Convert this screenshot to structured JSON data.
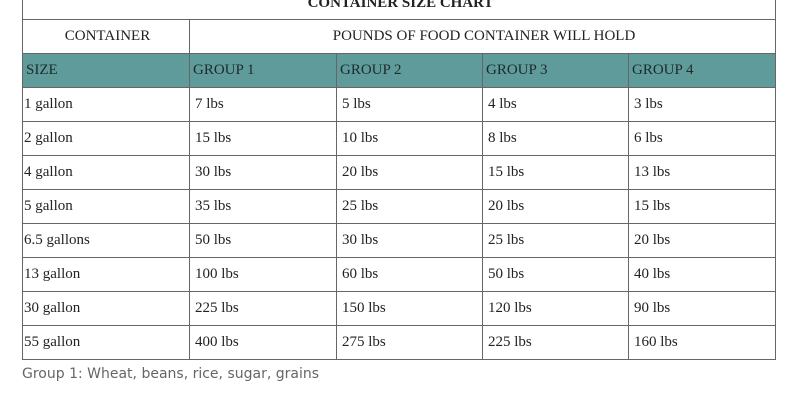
{
  "table": {
    "title": "CONTAINER SIZE CHART",
    "group_header": [
      "CONTAINER",
      "POUNDS OF FOOD CONTAINER WILL HOLD"
    ],
    "columns": [
      "SIZE",
      "GROUP 1",
      "GROUP 2",
      "GROUP 3",
      "GROUP 4"
    ],
    "rows": [
      [
        "1 gallon",
        "7 lbs",
        "5 lbs",
        "4 lbs",
        "3 lbs"
      ],
      [
        "2 gallon",
        "15 lbs",
        "10 lbs",
        "8 lbs",
        "6 lbs"
      ],
      [
        "4 gallon",
        "30 lbs",
        "20 lbs",
        "15 lbs",
        "13 lbs"
      ],
      [
        "5 gallon",
        "35 lbs",
        "25 lbs",
        "20 lbs",
        "15 lbs"
      ],
      [
        "6.5 gallons",
        "50 lbs",
        "30 lbs",
        "25 lbs",
        "20 lbs"
      ],
      [
        "13 gallon",
        "100 lbs",
        "60 lbs",
        "50 lbs",
        "40 lbs"
      ],
      [
        "30 gallon",
        "225 lbs",
        "150 lbs",
        "120 lbs",
        "90 lbs"
      ],
      [
        "55 gallon",
        "400 lbs",
        "275 lbs",
        "225 lbs",
        "160 lbs"
      ]
    ]
  },
  "notes": [
    "Group 1: Wheat, beans, rice, sugar, grains"
  ]
}
